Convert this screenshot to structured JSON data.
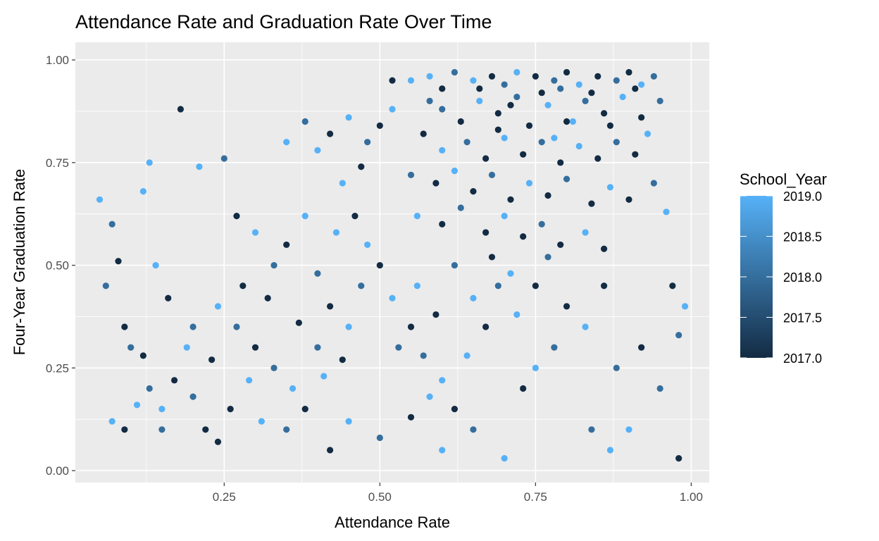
{
  "chart_data": {
    "type": "scatter",
    "title": "Attendance Rate and Graduation Rate Over Time",
    "xlabel": "Attendance Rate",
    "ylabel": "Four-Year Graduation Rate",
    "xlim": [
      0.011,
      1.029
    ],
    "ylim": [
      -0.029,
      1.043
    ],
    "xticks": [
      {
        "v": 0.25,
        "label": "0.25"
      },
      {
        "v": 0.5,
        "label": "0.50"
      },
      {
        "v": 0.75,
        "label": "0.75"
      },
      {
        "v": 1.0,
        "label": "1.00"
      }
    ],
    "yticks": [
      {
        "v": 0,
        "label": "0.00"
      },
      {
        "v": 0.25,
        "label": "0.25"
      },
      {
        "v": 0.5,
        "label": "0.50"
      },
      {
        "v": 0.75,
        "label": "0.75"
      },
      {
        "v": 1.0,
        "label": "1.00"
      }
    ],
    "grid": true,
    "legend": {
      "title": "School_Year",
      "position": "right",
      "range": [
        2017,
        2019
      ],
      "ticks": [
        {
          "v": 2019,
          "label": "2019.0"
        },
        {
          "v": 2018.5,
          "label": "2018.5"
        },
        {
          "v": 2018,
          "label": "2018.0"
        },
        {
          "v": 2017.5,
          "label": "2017.5"
        },
        {
          "v": 2017,
          "label": "2017.0"
        }
      ],
      "low_color": "#132B43",
      "high_color": "#56B1F7"
    },
    "points": [
      [
        0.55,
        0.95,
        2019
      ],
      [
        0.58,
        0.96,
        2019
      ],
      [
        0.6,
        0.93,
        2017
      ],
      [
        0.62,
        0.97,
        2018
      ],
      [
        0.65,
        0.95,
        2019
      ],
      [
        0.68,
        0.96,
        2017
      ],
      [
        0.7,
        0.94,
        2018
      ],
      [
        0.72,
        0.97,
        2019
      ],
      [
        0.75,
        0.96,
        2017
      ],
      [
        0.78,
        0.95,
        2018
      ],
      [
        0.8,
        0.97,
        2017
      ],
      [
        0.82,
        0.94,
        2019
      ],
      [
        0.85,
        0.96,
        2017
      ],
      [
        0.88,
        0.95,
        2018
      ],
      [
        0.9,
        0.97,
        2017
      ],
      [
        0.92,
        0.94,
        2019
      ],
      [
        0.94,
        0.96,
        2018
      ],
      [
        0.6,
        0.88,
        2018
      ],
      [
        0.63,
        0.85,
        2017
      ],
      [
        0.66,
        0.9,
        2019
      ],
      [
        0.69,
        0.87,
        2017
      ],
      [
        0.72,
        0.91,
        2018
      ],
      [
        0.74,
        0.84,
        2017
      ],
      [
        0.77,
        0.89,
        2019
      ],
      [
        0.8,
        0.85,
        2017
      ],
      [
        0.83,
        0.9,
        2018
      ],
      [
        0.86,
        0.87,
        2017
      ],
      [
        0.89,
        0.91,
        2019
      ],
      [
        0.92,
        0.86,
        2017
      ],
      [
        0.95,
        0.9,
        2018
      ],
      [
        0.57,
        0.82,
        2017
      ],
      [
        0.6,
        0.78,
        2019
      ],
      [
        0.64,
        0.8,
        2018
      ],
      [
        0.67,
        0.76,
        2017
      ],
      [
        0.7,
        0.81,
        2019
      ],
      [
        0.73,
        0.77,
        2017
      ],
      [
        0.76,
        0.8,
        2018
      ],
      [
        0.79,
        0.75,
        2017
      ],
      [
        0.82,
        0.79,
        2019
      ],
      [
        0.85,
        0.76,
        2017
      ],
      [
        0.88,
        0.8,
        2018
      ],
      [
        0.91,
        0.77,
        2017
      ],
      [
        0.93,
        0.82,
        2019
      ],
      [
        0.55,
        0.72,
        2018
      ],
      [
        0.59,
        0.7,
        2017
      ],
      [
        0.62,
        0.73,
        2019
      ],
      [
        0.65,
        0.68,
        2017
      ],
      [
        0.68,
        0.72,
        2018
      ],
      [
        0.71,
        0.66,
        2017
      ],
      [
        0.74,
        0.7,
        2019
      ],
      [
        0.77,
        0.67,
        2017
      ],
      [
        0.8,
        0.71,
        2018
      ],
      [
        0.84,
        0.65,
        2017
      ],
      [
        0.87,
        0.69,
        2019
      ],
      [
        0.9,
        0.66,
        2017
      ],
      [
        0.56,
        0.62,
        2019
      ],
      [
        0.6,
        0.6,
        2017
      ],
      [
        0.63,
        0.64,
        2018
      ],
      [
        0.67,
        0.58,
        2017
      ],
      [
        0.7,
        0.62,
        2019
      ],
      [
        0.73,
        0.57,
        2017
      ],
      [
        0.76,
        0.6,
        2018
      ],
      [
        0.79,
        0.55,
        2017
      ],
      [
        0.83,
        0.58,
        2019
      ],
      [
        0.86,
        0.54,
        2017
      ],
      [
        0.52,
        0.88,
        2019
      ],
      [
        0.5,
        0.84,
        2017
      ],
      [
        0.48,
        0.8,
        2018
      ],
      [
        0.45,
        0.86,
        2019
      ],
      [
        0.42,
        0.82,
        2017
      ],
      [
        0.4,
        0.78,
        2019
      ],
      [
        0.38,
        0.85,
        2018
      ],
      [
        0.35,
        0.8,
        2019
      ],
      [
        0.47,
        0.74,
        2017
      ],
      [
        0.44,
        0.7,
        2019
      ],
      [
        0.52,
        0.95,
        2017
      ],
      [
        0.81,
        0.85,
        2019
      ],
      [
        0.78,
        0.81,
        2019
      ],
      [
        0.66,
        0.93,
        2017
      ],
      [
        0.71,
        0.89,
        2017
      ],
      [
        0.76,
        0.92,
        2017
      ],
      [
        0.84,
        0.92,
        2017
      ],
      [
        0.87,
        0.84,
        2017
      ],
      [
        0.69,
        0.83,
        2017
      ],
      [
        0.79,
        0.93,
        2018
      ],
      [
        0.58,
        0.9,
        2018
      ],
      [
        0.91,
        0.93,
        2017
      ],
      [
        0.05,
        0.66,
        2019
      ],
      [
        0.07,
        0.6,
        2018
      ],
      [
        0.08,
        0.51,
        2017
      ],
      [
        0.06,
        0.45,
        2018
      ],
      [
        0.09,
        0.35,
        2017
      ],
      [
        0.1,
        0.3,
        2018
      ],
      [
        0.07,
        0.12,
        2019
      ],
      [
        0.09,
        0.1,
        2017
      ],
      [
        0.12,
        0.28,
        2017
      ],
      [
        0.13,
        0.2,
        2018
      ],
      [
        0.15,
        0.15,
        2019
      ],
      [
        0.17,
        0.22,
        2017
      ],
      [
        0.2,
        0.18,
        2018
      ],
      [
        0.22,
        0.1,
        2017
      ],
      [
        0.24,
        0.07,
        2017
      ],
      [
        0.18,
        0.88,
        2017
      ],
      [
        0.21,
        0.74,
        2019
      ],
      [
        0.25,
        0.76,
        2018
      ],
      [
        0.27,
        0.62,
        2017
      ],
      [
        0.3,
        0.58,
        2019
      ],
      [
        0.33,
        0.5,
        2018
      ],
      [
        0.28,
        0.45,
        2017
      ],
      [
        0.24,
        0.4,
        2019
      ],
      [
        0.2,
        0.35,
        2018
      ],
      [
        0.16,
        0.42,
        2017
      ],
      [
        0.14,
        0.5,
        2019
      ],
      [
        0.12,
        0.68,
        2019
      ],
      [
        0.13,
        0.75,
        2019
      ],
      [
        0.3,
        0.3,
        2017
      ],
      [
        0.33,
        0.25,
        2018
      ],
      [
        0.36,
        0.2,
        2019
      ],
      [
        0.38,
        0.15,
        2017
      ],
      [
        0.4,
        0.3,
        2018
      ],
      [
        0.42,
        0.4,
        2017
      ],
      [
        0.45,
        0.35,
        2019
      ],
      [
        0.47,
        0.45,
        2018
      ],
      [
        0.5,
        0.5,
        2017
      ],
      [
        0.52,
        0.42,
        2019
      ],
      [
        0.55,
        0.35,
        2017
      ],
      [
        0.57,
        0.28,
        2018
      ],
      [
        0.6,
        0.22,
        2019
      ],
      [
        0.62,
        0.15,
        2017
      ],
      [
        0.65,
        0.1,
        2018
      ],
      [
        0.6,
        0.05,
        2019
      ],
      [
        0.7,
        0.03,
        2019
      ],
      [
        0.73,
        0.2,
        2017
      ],
      [
        0.75,
        0.25,
        2019
      ],
      [
        0.78,
        0.3,
        2018
      ],
      [
        0.8,
        0.4,
        2017
      ],
      [
        0.83,
        0.35,
        2019
      ],
      [
        0.86,
        0.45,
        2017
      ],
      [
        0.88,
        0.25,
        2018
      ],
      [
        0.9,
        0.1,
        2019
      ],
      [
        0.92,
        0.3,
        2017
      ],
      [
        0.95,
        0.2,
        2018
      ],
      [
        0.97,
        0.45,
        2017
      ],
      [
        0.98,
        0.03,
        2017
      ],
      [
        0.98,
        0.33,
        2018
      ],
      [
        0.99,
        0.4,
        2019
      ],
      [
        0.96,
        0.63,
        2019
      ],
      [
        0.94,
        0.7,
        2018
      ],
      [
        0.38,
        0.62,
        2019
      ],
      [
        0.35,
        0.55,
        2017
      ],
      [
        0.4,
        0.48,
        2018
      ],
      [
        0.43,
        0.58,
        2019
      ],
      [
        0.46,
        0.62,
        2017
      ],
      [
        0.48,
        0.55,
        2019
      ],
      [
        0.27,
        0.35,
        2018
      ],
      [
        0.23,
        0.27,
        2017
      ],
      [
        0.19,
        0.3,
        2019
      ],
      [
        0.15,
        0.1,
        2018
      ],
      [
        0.11,
        0.16,
        2019
      ],
      [
        0.26,
        0.15,
        2017
      ],
      [
        0.31,
        0.12,
        2019
      ],
      [
        0.35,
        0.1,
        2018
      ],
      [
        0.42,
        0.05,
        2017
      ],
      [
        0.45,
        0.12,
        2019
      ],
      [
        0.5,
        0.08,
        2018
      ],
      [
        0.55,
        0.13,
        2017
      ],
      [
        0.58,
        0.18,
        2019
      ],
      [
        0.64,
        0.28,
        2019
      ],
      [
        0.67,
        0.35,
        2017
      ],
      [
        0.69,
        0.45,
        2018
      ],
      [
        0.72,
        0.38,
        2019
      ],
      [
        0.32,
        0.42,
        2017
      ],
      [
        0.29,
        0.22,
        2019
      ],
      [
        0.37,
        0.36,
        2017
      ],
      [
        0.41,
        0.23,
        2019
      ],
      [
        0.44,
        0.27,
        2017
      ],
      [
        0.53,
        0.3,
        2018
      ],
      [
        0.56,
        0.45,
        2019
      ],
      [
        0.59,
        0.38,
        2017
      ],
      [
        0.62,
        0.5,
        2018
      ],
      [
        0.65,
        0.42,
        2019
      ],
      [
        0.68,
        0.52,
        2017
      ],
      [
        0.71,
        0.48,
        2019
      ],
      [
        0.75,
        0.45,
        2017
      ],
      [
        0.77,
        0.52,
        2018
      ],
      [
        0.84,
        0.1,
        2018
      ],
      [
        0.87,
        0.05,
        2019
      ]
    ]
  }
}
